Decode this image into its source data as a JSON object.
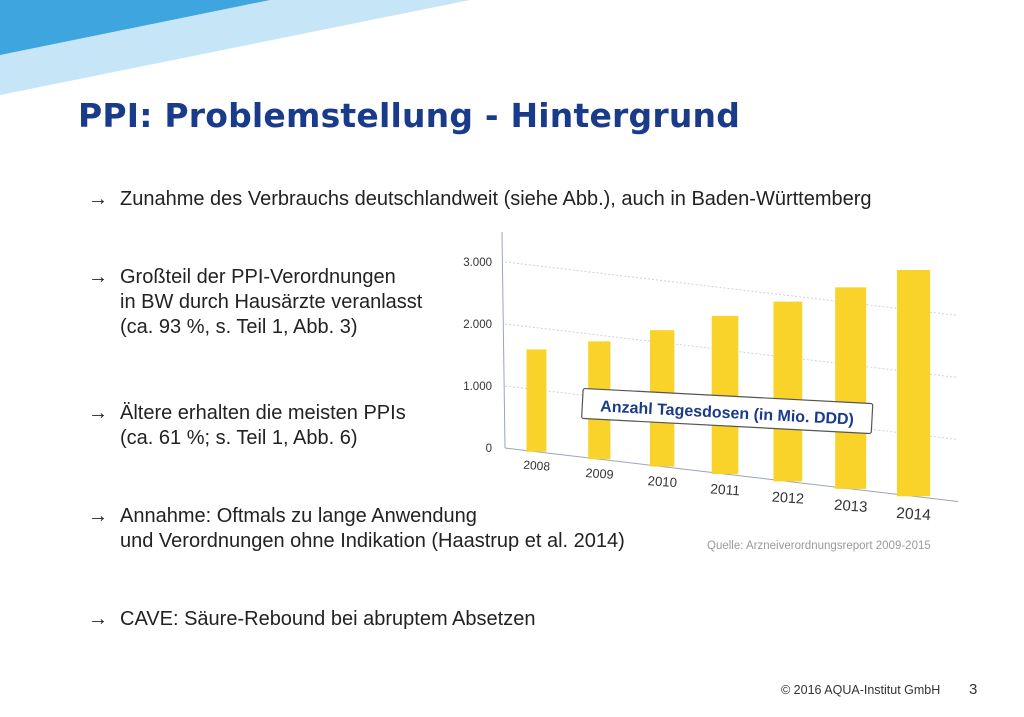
{
  "slide": {
    "title": "PPI: Problemstellung - Hintergrund",
    "bullets": [
      {
        "lines": [
          "Zunahme des Verbrauchs deutschlandweit (siehe Abb.), auch in Baden-Württemberg"
        ]
      },
      {
        "lines": [
          "Großteil der PPI-Verordnungen",
          "in BW durch Hausärzte veranlasst",
          "(ca. 93 %, s. Teil 1, Abb. 3)"
        ]
      },
      {
        "lines": [
          "Ältere erhalten die meisten PPIs",
          "(ca. 61 %; s. Teil 1, Abb. 6)"
        ]
      },
      {
        "lines": [
          "Annahme: Oftmals zu lange Anwendung",
          "und Verordnungen ohne Indikation (Haastrup et al. 2014)"
        ]
      },
      {
        "lines": [
          "CAVE: Säure-Rebound bei abruptem Absetzen"
        ]
      }
    ],
    "arrow_glyph": "→",
    "source": "Quelle: Arzneiverordnungsreport 2009-2015",
    "copyright": "© 2016 AQUA-Institut GmbH",
    "page_number": "3"
  },
  "colors": {
    "title": "#1a3a8a",
    "bar": "#f9d32a",
    "banner_light": "#bfe3f6",
    "banner_dark": "#3fa5de"
  },
  "chart_data": {
    "type": "bar",
    "categories": [
      "2008",
      "2009",
      "2010",
      "2011",
      "2012",
      "2013",
      "2014"
    ],
    "values": [
      1650,
      1900,
      2200,
      2550,
      2900,
      3250,
      3650
    ],
    "ytick_labels": [
      "0",
      "1.000",
      "2.000",
      "3.000"
    ],
    "yticks": [
      0,
      1000,
      2000,
      3000
    ],
    "ylim": [
      0,
      3700
    ],
    "annotation": "Anzahl Tagesdosen (in Mio. DDD)",
    "grid": true
  }
}
